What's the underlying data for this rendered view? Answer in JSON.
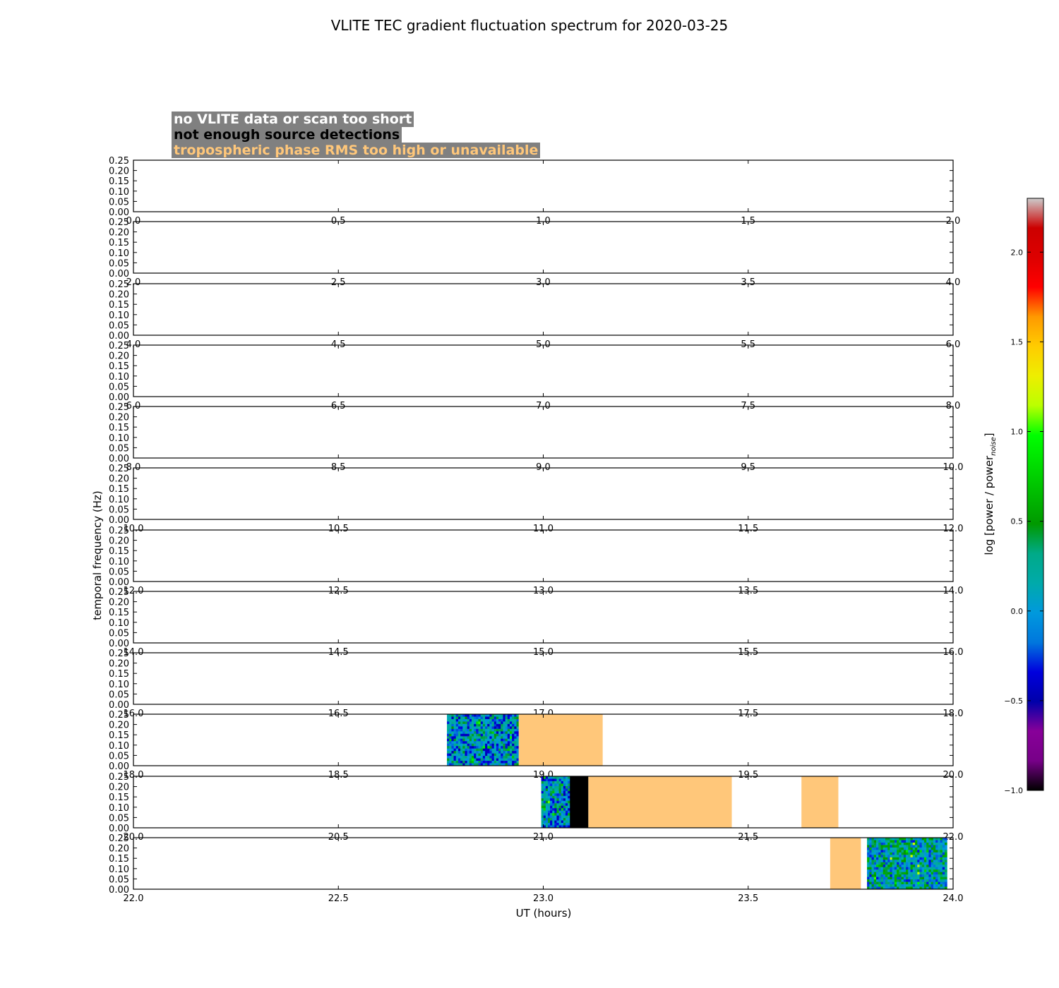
{
  "chart_data": {
    "type": "heatmap",
    "title": "VLITE TEC gradient fluctuation spectrum for 2020-03-25",
    "xlabel": "UT (hours)",
    "ylabel": "temporal frequency (Hz)",
    "ylim": [
      0,
      0.25
    ],
    "yticks": [
      "0.00",
      "0.05",
      "0.10",
      "0.15",
      "0.20",
      "0.25"
    ],
    "legend": [
      {
        "label": "no VLITE data or scan too short",
        "color": "#ffffff"
      },
      {
        "label": "not enough source detections",
        "color": "#000000"
      },
      {
        "label": "tropospheric phase RMS too high or unavailable",
        "color": "#ffc77a"
      }
    ],
    "colorbar": {
      "label": "log [power / power",
      "label_sub": "noise",
      "label_end": "]",
      "range": [
        -1.0,
        2.3
      ],
      "ticks": [
        "−1.0",
        "−0.5",
        "0.0",
        "0.5",
        "1.0",
        "1.5",
        "2.0"
      ],
      "colormap": "nipy_spectral"
    },
    "panels": [
      {
        "xlim": [
          0,
          2
        ],
        "xticks": [
          "0.0",
          "0.5",
          "1.0",
          "1.5",
          "2.0"
        ],
        "blocks": []
      },
      {
        "xlim": [
          2,
          4
        ],
        "xticks": [
          "2.0",
          "2.5",
          "3.0",
          "3.5",
          "4.0"
        ],
        "blocks": []
      },
      {
        "xlim": [
          4,
          6
        ],
        "xticks": [
          "4.0",
          "4.5",
          "5.0",
          "5.5",
          "6.0"
        ],
        "blocks": []
      },
      {
        "xlim": [
          6,
          8
        ],
        "xticks": [
          "6.0",
          "6.5",
          "7.0",
          "7.5",
          "8.0"
        ],
        "blocks": []
      },
      {
        "xlim": [
          8,
          10
        ],
        "xticks": [
          "8.0",
          "8.5",
          "9.0",
          "9.5",
          "10.0"
        ],
        "blocks": []
      },
      {
        "xlim": [
          10,
          12
        ],
        "xticks": [
          "10.0",
          "10.5",
          "11.0",
          "11.5",
          "12.0"
        ],
        "blocks": []
      },
      {
        "xlim": [
          12,
          14
        ],
        "xticks": [
          "12.0",
          "12.5",
          "13.0",
          "13.5",
          "14.0"
        ],
        "blocks": []
      },
      {
        "xlim": [
          14,
          16
        ],
        "xticks": [
          "14.0",
          "14.5",
          "15.0",
          "15.5",
          "16.0"
        ],
        "blocks": []
      },
      {
        "xlim": [
          16,
          18
        ],
        "xticks": [
          "16.0",
          "16.5",
          "17.0",
          "17.5",
          "18.0"
        ],
        "blocks": []
      },
      {
        "xlim": [
          18,
          20
        ],
        "xticks": [
          "18.0",
          "18.5",
          "19.0",
          "19.5",
          "20.0"
        ],
        "blocks": [
          {
            "kind": "spectrum",
            "x0": 18.765,
            "x1": 18.94,
            "mean": 0.0
          },
          {
            "kind": "tropo",
            "x0": 18.94,
            "x1": 19.145
          }
        ]
      },
      {
        "xlim": [
          20,
          22
        ],
        "xticks": [
          "20.0",
          "20.5",
          "21.0",
          "21.5",
          "22.0"
        ],
        "blocks": [
          {
            "kind": "spectrum",
            "x0": 20.995,
            "x1": 21.065,
            "mean": 0.0
          },
          {
            "kind": "detections",
            "x0": 21.065,
            "x1": 21.11
          },
          {
            "kind": "tropo",
            "x0": 21.11,
            "x1": 21.46
          },
          {
            "kind": "tropo",
            "x0": 21.63,
            "x1": 21.72
          }
        ]
      },
      {
        "xlim": [
          22,
          24
        ],
        "xticks": [
          "22.0",
          "22.5",
          "23.0",
          "23.5",
          "24.0"
        ],
        "blocks": [
          {
            "kind": "tropo",
            "x0": 23.7,
            "x1": 23.775
          },
          {
            "kind": "spectrum",
            "x0": 23.79,
            "x1": 23.985,
            "mean": 0.15
          }
        ]
      }
    ]
  }
}
